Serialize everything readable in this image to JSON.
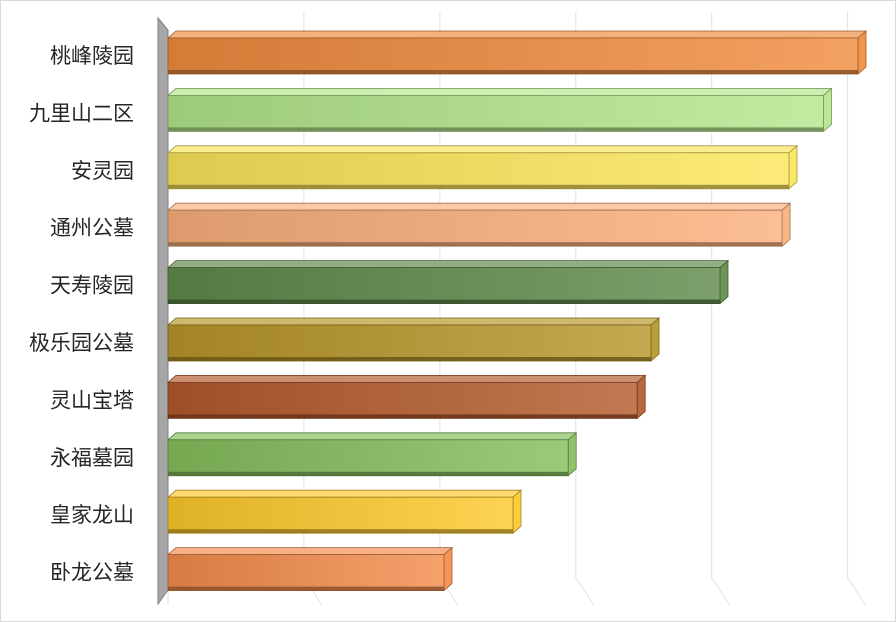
{
  "chart_data": {
    "type": "bar",
    "orientation": "horizontal",
    "style": "3d",
    "grid": true,
    "legend": "none",
    "xlim": [
      0,
      100
    ],
    "categories": [
      "桃峰陵园",
      "九里山二区",
      "安灵园",
      "通州公墓",
      "天寿陵园",
      "极乐园公墓",
      "灵山宝塔",
      "永福墓园",
      "皇家龙山",
      "卧龙公墓"
    ],
    "values": [
      100,
      95,
      90,
      89,
      80,
      70,
      68,
      58,
      50,
      40
    ],
    "colors": [
      "#f08c3e",
      "#b4e68c",
      "#fbe65a",
      "#fbb07c",
      "#5f8a4a",
      "#b8962a",
      "#b45a2c",
      "#86be5c",
      "#fdc92c",
      "#f38c4c"
    ]
  }
}
